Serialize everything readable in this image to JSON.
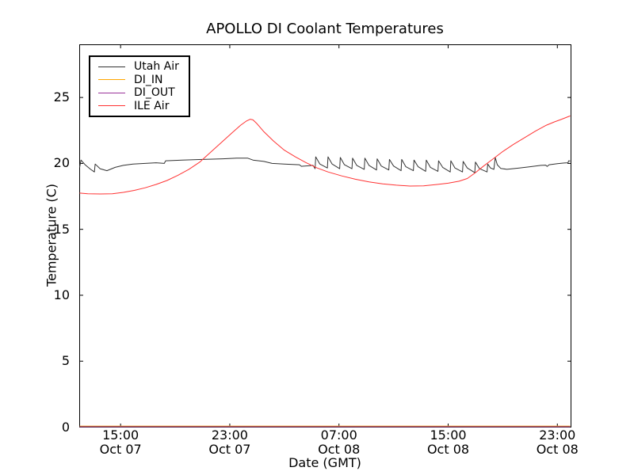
{
  "chart_data": {
    "type": "line",
    "title": "APOLLO DI Coolant Temperatures",
    "xlabel": "Date (GMT)",
    "ylabel": "Temperature (C)",
    "grid": false,
    "legend_position": "upper left",
    "x_unit_note": "x values are hours after the left edge of the plot (left edge is about 12:00 Oct 07 GMT, right edge about 24:00 Oct 08 GMT)",
    "xlim": [
      0,
      36
    ],
    "ylim": [
      0,
      29
    ],
    "yticks": [
      0,
      5,
      10,
      15,
      20,
      25
    ],
    "xticks": [
      {
        "h": 3,
        "time": "15:00",
        "date": "Oct 07"
      },
      {
        "h": 11,
        "time": "23:00",
        "date": "Oct 07"
      },
      {
        "h": 19,
        "time": "07:00",
        "date": "Oct 08"
      },
      {
        "h": 27,
        "time": "15:00",
        "date": "Oct 08"
      },
      {
        "h": 35,
        "time": "23:00",
        "date": "Oct 08"
      }
    ],
    "series": [
      {
        "name": "Utah Air",
        "color": "#333333",
        "points": [
          [
            0.0,
            19.7
          ],
          [
            0.1,
            20.25
          ],
          [
            0.4,
            19.9
          ],
          [
            0.8,
            19.55
          ],
          [
            1.08,
            19.35
          ],
          [
            1.14,
            19.95
          ],
          [
            1.5,
            19.6
          ],
          [
            2.0,
            19.45
          ],
          [
            2.6,
            19.7
          ],
          [
            3.2,
            19.85
          ],
          [
            3.9,
            19.95
          ],
          [
            4.8,
            20.0
          ],
          [
            5.6,
            20.05
          ],
          [
            6.2,
            20.0
          ],
          [
            6.3,
            20.2
          ],
          [
            7.5,
            20.25
          ],
          [
            9.0,
            20.3
          ],
          [
            10.5,
            20.35
          ],
          [
            11.5,
            20.4
          ],
          [
            12.3,
            20.4
          ],
          [
            12.7,
            20.25
          ],
          [
            13.5,
            20.15
          ],
          [
            14.1,
            20.0
          ],
          [
            15.0,
            19.95
          ],
          [
            16.1,
            19.9
          ],
          [
            16.25,
            19.78
          ],
          [
            16.8,
            19.82
          ],
          [
            17.1,
            19.85
          ],
          [
            17.25,
            19.6
          ],
          [
            17.3,
            20.5
          ],
          [
            17.6,
            19.95
          ],
          [
            18.15,
            19.65
          ],
          [
            18.2,
            20.5
          ],
          [
            18.5,
            19.95
          ],
          [
            19.05,
            19.6
          ],
          [
            19.1,
            20.45
          ],
          [
            19.4,
            19.9
          ],
          [
            19.95,
            19.6
          ],
          [
            20.0,
            20.4
          ],
          [
            20.3,
            19.85
          ],
          [
            20.85,
            19.55
          ],
          [
            20.9,
            20.4
          ],
          [
            21.2,
            19.85
          ],
          [
            21.75,
            19.5
          ],
          [
            21.8,
            20.35
          ],
          [
            22.1,
            19.8
          ],
          [
            22.65,
            19.5
          ],
          [
            22.7,
            20.3
          ],
          [
            23.0,
            19.8
          ],
          [
            23.55,
            19.45
          ],
          [
            23.6,
            20.3
          ],
          [
            23.9,
            19.75
          ],
          [
            24.45,
            19.45
          ],
          [
            24.5,
            20.25
          ],
          [
            24.8,
            19.75
          ],
          [
            25.35,
            19.4
          ],
          [
            25.4,
            20.25
          ],
          [
            25.7,
            19.7
          ],
          [
            26.25,
            19.4
          ],
          [
            26.3,
            20.2
          ],
          [
            26.6,
            19.7
          ],
          [
            27.15,
            19.35
          ],
          [
            27.2,
            20.2
          ],
          [
            27.5,
            19.65
          ],
          [
            28.05,
            19.35
          ],
          [
            28.1,
            20.15
          ],
          [
            28.4,
            19.65
          ],
          [
            28.95,
            19.3
          ],
          [
            29.0,
            20.1
          ],
          [
            29.3,
            19.6
          ],
          [
            29.85,
            19.35
          ],
          [
            29.9,
            19.95
          ],
          [
            30.1,
            19.65
          ],
          [
            30.35,
            19.55
          ],
          [
            30.45,
            20.45
          ],
          [
            30.6,
            19.9
          ],
          [
            30.85,
            19.62
          ],
          [
            31.3,
            19.55
          ],
          [
            32.2,
            19.65
          ],
          [
            33.0,
            19.75
          ],
          [
            33.8,
            19.85
          ],
          [
            34.15,
            19.87
          ],
          [
            34.25,
            19.77
          ],
          [
            34.4,
            19.9
          ],
          [
            35.0,
            19.98
          ],
          [
            35.5,
            20.03
          ],
          [
            35.78,
            20.05
          ],
          [
            35.83,
            20.2
          ],
          [
            35.94,
            20.18
          ]
        ]
      },
      {
        "name": "DI_IN",
        "color": "#ffa500",
        "points": [
          [
            0.0,
            0.0
          ],
          [
            35.94,
            0.0
          ]
        ]
      },
      {
        "name": "DI_OUT",
        "color": "#993399",
        "points": [
          [
            0.0,
            0.0
          ],
          [
            35.94,
            0.0
          ]
        ]
      },
      {
        "name": "ILE Air",
        "color": "#ff3333",
        "points": [
          [
            0.0,
            17.75
          ],
          [
            0.6,
            17.7
          ],
          [
            1.5,
            17.68
          ],
          [
            2.4,
            17.7
          ],
          [
            3.2,
            17.8
          ],
          [
            4.0,
            17.95
          ],
          [
            4.8,
            18.15
          ],
          [
            5.6,
            18.4
          ],
          [
            6.4,
            18.7
          ],
          [
            7.2,
            19.1
          ],
          [
            8.0,
            19.55
          ],
          [
            8.8,
            20.1
          ],
          [
            9.6,
            20.85
          ],
          [
            10.4,
            21.6
          ],
          [
            11.2,
            22.35
          ],
          [
            11.8,
            22.9
          ],
          [
            12.2,
            23.2
          ],
          [
            12.5,
            23.35
          ],
          [
            12.7,
            23.3
          ],
          [
            13.0,
            23.0
          ],
          [
            13.5,
            22.4
          ],
          [
            14.2,
            21.7
          ],
          [
            15.0,
            21.0
          ],
          [
            15.8,
            20.5
          ],
          [
            16.6,
            20.05
          ],
          [
            17.4,
            19.65
          ],
          [
            18.2,
            19.35
          ],
          [
            19.2,
            19.05
          ],
          [
            20.2,
            18.8
          ],
          [
            21.2,
            18.6
          ],
          [
            22.2,
            18.45
          ],
          [
            23.2,
            18.35
          ],
          [
            24.2,
            18.28
          ],
          [
            25.2,
            18.3
          ],
          [
            26.2,
            18.4
          ],
          [
            27.0,
            18.5
          ],
          [
            27.8,
            18.65
          ],
          [
            28.4,
            18.85
          ],
          [
            29.0,
            19.3
          ],
          [
            29.6,
            19.8
          ],
          [
            30.3,
            20.35
          ],
          [
            31.0,
            20.9
          ],
          [
            31.8,
            21.45
          ],
          [
            32.6,
            21.95
          ],
          [
            33.4,
            22.45
          ],
          [
            34.2,
            22.9
          ],
          [
            34.8,
            23.15
          ],
          [
            35.2,
            23.3
          ],
          [
            35.5,
            23.42
          ],
          [
            35.94,
            23.6
          ]
        ]
      }
    ]
  }
}
